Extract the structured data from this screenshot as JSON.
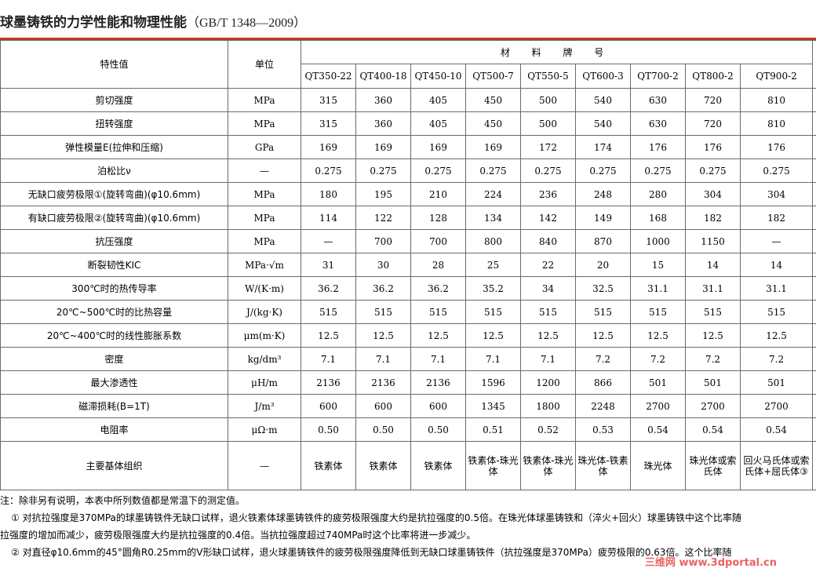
{
  "title": "球墨铸铁的力学性能和物理性能",
  "standard": "（GB/T 1348—2009）",
  "header": {
    "property": "特性值",
    "unit": "单位",
    "grade_group": "材 料 牌 号",
    "grades": [
      "QT350-22",
      "QT400-18",
      "QT450-10",
      "QT500-7",
      "QT550-5",
      "QT600-3",
      "QT700-2",
      "QT800-2",
      "QT900-2"
    ]
  },
  "rows": [
    {
      "label": "剪切强度",
      "unit": "MPa",
      "values": [
        "315",
        "360",
        "405",
        "450",
        "500",
        "540",
        "630",
        "720",
        "810"
      ]
    },
    {
      "label": "扭转强度",
      "unit": "MPa",
      "values": [
        "315",
        "360",
        "405",
        "450",
        "500",
        "540",
        "630",
        "720",
        "810"
      ]
    },
    {
      "label": "弹性模量E(拉伸和压缩)",
      "unit": "GPa",
      "values": [
        "169",
        "169",
        "169",
        "169",
        "172",
        "174",
        "176",
        "176",
        "176"
      ]
    },
    {
      "label": "泊松比ν",
      "unit": "—",
      "values": [
        "0.275",
        "0.275",
        "0.275",
        "0.275",
        "0.275",
        "0.275",
        "0.275",
        "0.275",
        "0.275"
      ]
    },
    {
      "label": "无缺口疲劳极限①(旋转弯曲)(φ10.6mm)",
      "unit": "MPa",
      "values": [
        "180",
        "195",
        "210",
        "224",
        "236",
        "248",
        "280",
        "304",
        "304"
      ]
    },
    {
      "label": "有缺口疲劳极限②(旋转弯曲)(φ10.6mm)",
      "unit": "MPa",
      "values": [
        "114",
        "122",
        "128",
        "134",
        "142",
        "149",
        "168",
        "182",
        "182"
      ]
    },
    {
      "label": "抗压强度",
      "unit": "MPa",
      "values": [
        "—",
        "700",
        "700",
        "800",
        "840",
        "870",
        "1000",
        "1150",
        "—"
      ]
    },
    {
      "label": "断裂韧性KIC",
      "unit": "MPa·√m",
      "values": [
        "31",
        "30",
        "28",
        "25",
        "22",
        "20",
        "15",
        "14",
        "14"
      ]
    },
    {
      "label": "300℃时的热传导率",
      "unit": "W/(K·m)",
      "values": [
        "36.2",
        "36.2",
        "36.2",
        "35.2",
        "34",
        "32.5",
        "31.1",
        "31.1",
        "31.1"
      ]
    },
    {
      "label": "20℃~500℃时的比热容量",
      "unit": "J/(kg·K)",
      "values": [
        "515",
        "515",
        "515",
        "515",
        "515",
        "515",
        "515",
        "515",
        "515"
      ]
    },
    {
      "label": "20℃~400℃时的线性膨胀系数",
      "unit": "μm(m·K)",
      "values": [
        "12.5",
        "12.5",
        "12.5",
        "12.5",
        "12.5",
        "12.5",
        "12.5",
        "12.5",
        "12.5"
      ]
    },
    {
      "label": "密度",
      "unit": "kg/dm³",
      "values": [
        "7.1",
        "7.1",
        "7.1",
        "7.1",
        "7.1",
        "7.2",
        "7.2",
        "7.2",
        "7.2"
      ]
    },
    {
      "label": "最大渗透性",
      "unit": "μH/m",
      "values": [
        "2136",
        "2136",
        "2136",
        "1596",
        "1200",
        "866",
        "501",
        "501",
        "501"
      ]
    },
    {
      "label": "磁滞损耗(B=1T)",
      "unit": "J/m³",
      "values": [
        "600",
        "600",
        "600",
        "1345",
        "1800",
        "2248",
        "2700",
        "2700",
        "2700"
      ]
    },
    {
      "label": "电阻率",
      "unit": "μΩ·m",
      "values": [
        "0.50",
        "0.50",
        "0.50",
        "0.51",
        "0.52",
        "0.53",
        "0.54",
        "0.54",
        "0.54"
      ]
    },
    {
      "label": "主要基体组织",
      "unit": "—",
      "values": [
        "铁素体",
        "铁素体",
        "铁素体",
        "铁素体-珠光体",
        "铁素体-珠光体",
        "珠光体-铁素体",
        "珠光体",
        "珠光体或索氏体",
        "回火马氏体或索氏体+屈氏体③"
      ]
    }
  ],
  "notes": [
    "注：除非另有说明，本表中所列数值都是常温下的测定值。",
    "① 对抗拉强度是370MPa的球墨铸铁件无缺口试样，退火铁素体球墨铸铁件的疲劳极限强度大约是抗拉强度的0.5倍。在珠光体球墨铸铁和（淬火+回火）球墨铸铁中这个比率随",
    "拉强度的增加而减少，疲劳极限强度大约是抗拉强度的0.4倍。当抗拉强度超过740MPa时这个比率将进一步减少。",
    "② 对直径φ10.6mm的45°圆角R0.25mm的V形缺口试样，退火球墨铸铁件的疲劳极限强度降低到无缺口球墨铸铁件（抗拉强度是370MPa）疲劳极限的0.63倍。这个比率随"
  ],
  "watermark": "三维网 www.3dportal.cn"
}
